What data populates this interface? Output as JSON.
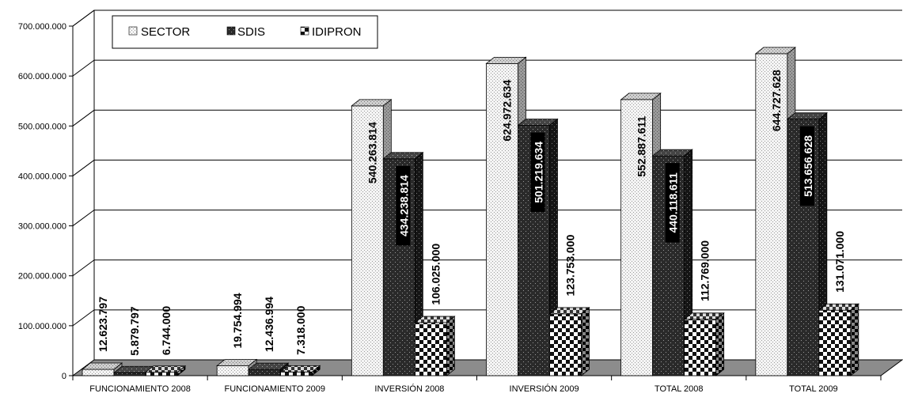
{
  "chart_data": {
    "type": "bar",
    "categories": [
      "FUNCIONAMIENTO 2008",
      "FUNCIONAMIENTO 2009",
      "INVERSIÓN 2008",
      "INVERSIÓN 2009",
      "TOTAL 2008",
      "TOTAL 2009"
    ],
    "series": [
      {
        "name": "SECTOR",
        "values": [
          12623797,
          19754994,
          540263814,
          624972634,
          552887611,
          644727628
        ],
        "labels": [
          "12.623.797",
          "19.754.994",
          "540.263.814",
          "624.972.634",
          "552.887.611",
          "644.727.628"
        ]
      },
      {
        "name": "SDIS",
        "values": [
          5879797,
          12436994,
          434238814,
          501219634,
          440118611,
          513656628
        ],
        "labels": [
          "5.879.797",
          "12.436.994",
          "434.238.814",
          "501.219.634",
          "440.118.611",
          "513.656.628"
        ]
      },
      {
        "name": "IDIPRON",
        "values": [
          6744000,
          7318000,
          106025000,
          123753000,
          112769000,
          131071000
        ],
        "labels": [
          "6.744.000",
          "7.318.000",
          "106.025.000",
          "123.753.000",
          "112.769.000",
          "131.071.000"
        ]
      }
    ],
    "ylim": [
      0,
      700000000
    ],
    "yticks": [
      "0",
      "100.000.000",
      "200.000.000",
      "300.000.000",
      "400.000.000",
      "500.000.000",
      "600.000.000",
      "700.000.000"
    ],
    "grid": true,
    "legend_position": "top-left",
    "style": "3d-clustered-column"
  }
}
